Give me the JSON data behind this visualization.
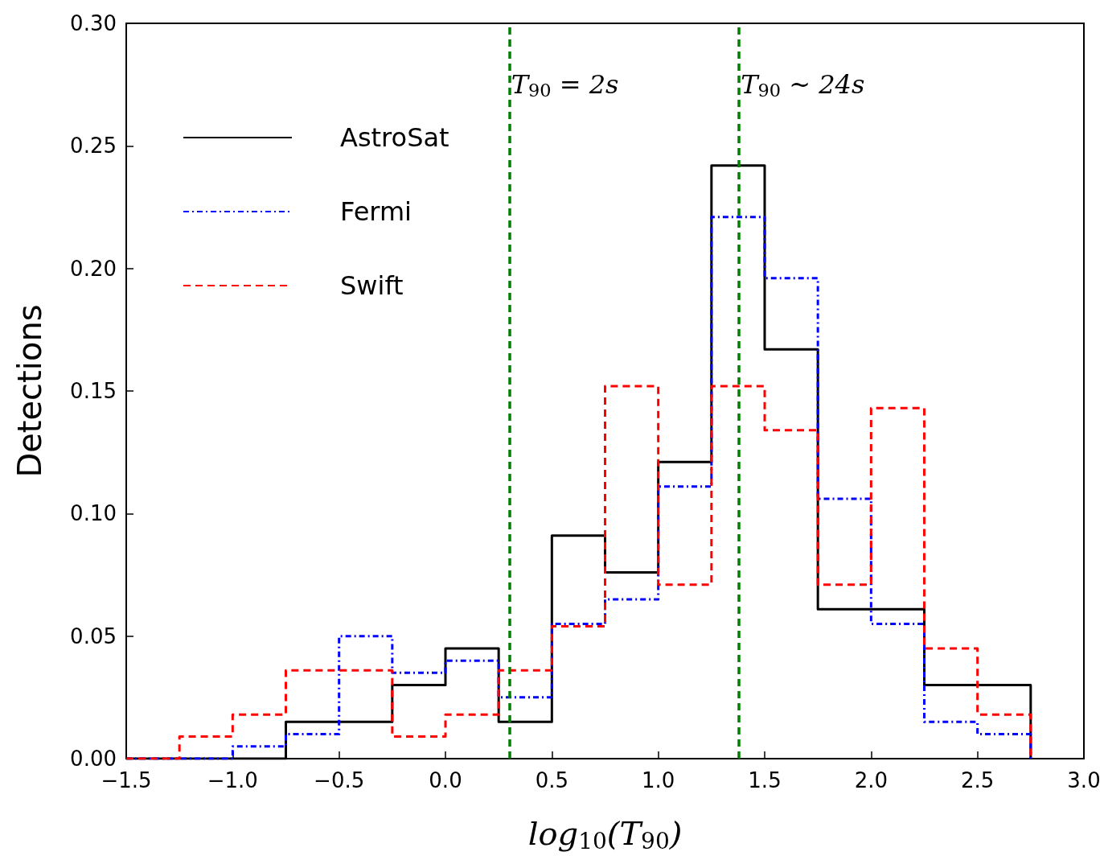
{
  "chart_data": {
    "type": "histogram",
    "xlabel": "log$_{10}$(T$_{90}$)",
    "ylabel": "Detections",
    "bins": [
      -1.5,
      -1.25,
      -1.0,
      -0.75,
      -0.5,
      -0.25,
      0.0,
      0.25,
      0.5,
      0.75,
      1.0,
      1.25,
      1.5,
      1.75,
      2.0,
      2.25,
      2.5,
      2.75
    ],
    "series": [
      {
        "name": "AstroSat",
        "color": "#000000",
        "line_style": "solid",
        "values": [
          0,
          0,
          0,
          0.015,
          0.015,
          0.03,
          0.045,
          0.015,
          0.091,
          0.076,
          0.121,
          0.242,
          0.167,
          0.061,
          0.061,
          0.03,
          0.03
        ]
      },
      {
        "name": "Fermi",
        "color": "#0000ff",
        "line_style": "dotted",
        "values": [
          0,
          0,
          0.005,
          0.01,
          0.05,
          0.035,
          0.04,
          0.025,
          0.055,
          0.065,
          0.111,
          0.221,
          0.196,
          0.106,
          0.055,
          0.015,
          0.01
        ]
      },
      {
        "name": "Swift",
        "color": "#ff0000",
        "line_style": "dashed",
        "values": [
          0,
          0.009,
          0.018,
          0.036,
          0.036,
          0.009,
          0.018,
          0.036,
          0.054,
          0.152,
          0.071,
          0.152,
          0.134,
          0.071,
          0.143,
          0.045,
          0.018
        ]
      }
    ],
    "xlim": [
      -1.5,
      3.0
    ],
    "xticks": [
      {
        "value": -1.5,
        "label": "−1.5"
      },
      {
        "value": -1.0,
        "label": "−1.0"
      },
      {
        "value": -0.5,
        "label": "−0.5"
      },
      {
        "value": 0,
        "label": "0.0"
      },
      {
        "value": 0.5,
        "label": "0.5"
      },
      {
        "value": 1.0,
        "label": "1.0"
      },
      {
        "value": 1.5,
        "label": "1.5"
      },
      {
        "value": 2.0,
        "label": "2.0"
      },
      {
        "value": 2.5,
        "label": "2.5"
      },
      {
        "value": 3.0,
        "label": "3.0"
      }
    ],
    "ylim": [
      0,
      0.3
    ],
    "yticks": [
      {
        "value": 0,
        "label": "0.00"
      },
      {
        "value": 0.05,
        "label": "0.05"
      },
      {
        "value": 0.1,
        "label": "0.10"
      },
      {
        "value": 0.15,
        "label": "0.15"
      },
      {
        "value": 0.2,
        "label": "0.20"
      },
      {
        "value": 0.25,
        "label": "0.25"
      },
      {
        "value": 0.3,
        "label": "0.30"
      }
    ],
    "ref_lines": [
      {
        "axis": "x",
        "value": 0.301,
        "color": "#008000",
        "line_style": "dashed"
      },
      {
        "axis": "x",
        "value": 1.38,
        "color": "#008000",
        "line_style": "dashed"
      }
    ],
    "annotations": [
      "T$_{90}$ = 2s",
      "T$_{90}$ ~ 24s"
    ],
    "grid": false,
    "legend": "top left",
    "marker": "none"
  }
}
